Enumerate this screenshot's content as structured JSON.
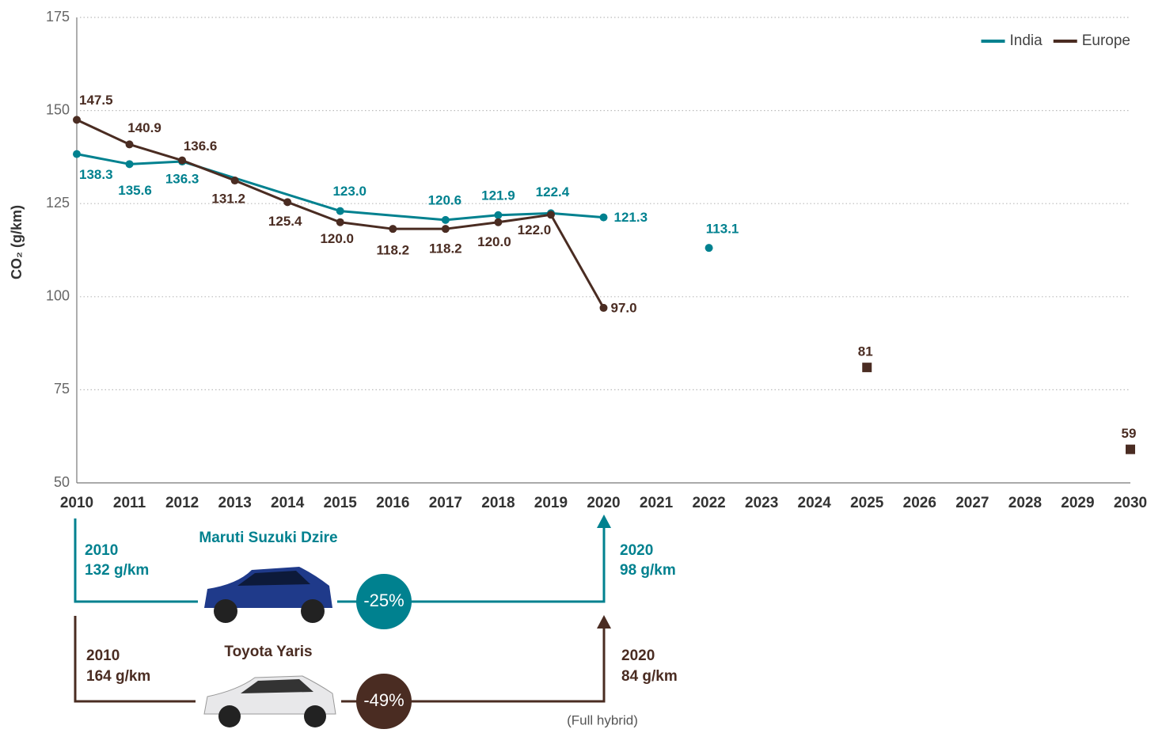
{
  "chart_data": {
    "type": "line",
    "y_label": "CO₂ (g/km)",
    "xlim": [
      2010,
      2030
    ],
    "xticks": [
      2010,
      2011,
      2012,
      2013,
      2014,
      2015,
      2016,
      2017,
      2018,
      2019,
      2020,
      2021,
      2022,
      2023,
      2024,
      2025,
      2026,
      2027,
      2028,
      2029,
      2030
    ],
    "ylim": [
      50,
      175
    ],
    "yticks": [
      50,
      75,
      100,
      125,
      150,
      175
    ],
    "grid": true,
    "legend": "top-right",
    "series": [
      {
        "name": "India",
        "color": "#00818f",
        "x": [
          2010,
          2011,
          2012,
          2015,
          2017,
          2018,
          2019,
          2020,
          2021,
          2022
        ],
        "values": [
          138.3,
          135.6,
          136.3,
          123.0,
          120.6,
          121.9,
          122.4,
          121.3,
          null,
          113.1
        ],
        "value_labels": [
          "138.3",
          "135.6",
          "136.3",
          "123.0",
          "120.6",
          "121.9",
          "122.4",
          "121.3",
          null,
          "113.1"
        ]
      },
      {
        "name": "Europe",
        "color": "#4a2c22",
        "x": [
          2010,
          2011,
          2012,
          2013,
          2014,
          2015,
          2016,
          2017,
          2018,
          2019,
          2020
        ],
        "values": [
          147.5,
          140.9,
          136.6,
          131.2,
          125.4,
          120.0,
          118.2,
          118.2,
          120.0,
          122.0,
          97.0
        ],
        "value_labels": [
          "147.5",
          "140.9",
          "136.6",
          "131.2",
          "125.4",
          "120.0",
          "118.2",
          "118.2",
          "120.0",
          "122.0",
          "97.0"
        ]
      }
    ],
    "targets": {
      "color": "#4a2c22",
      "x": [
        2025,
        2030
      ],
      "values": [
        81,
        59
      ]
    }
  },
  "annotations": {
    "india": {
      "car": "Maruti Suzuki Dzire",
      "start_year": "2010",
      "start_value": "132 g/km",
      "end_year": "2020",
      "end_value": "98 g/km",
      "change": "-25%"
    },
    "europe": {
      "car": "Toyota Yaris",
      "start_year": "2010",
      "start_value": "164 g/km",
      "end_year": "2020",
      "end_value": "84 g/km",
      "change": "-49%",
      "note": "(Full hybrid)"
    }
  }
}
